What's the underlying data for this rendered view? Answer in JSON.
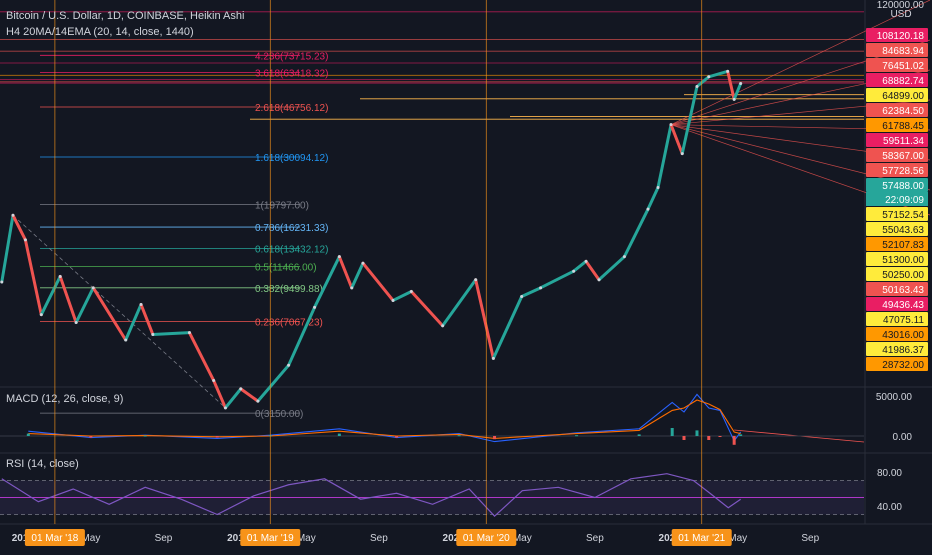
{
  "header": {
    "title": "Bitcoin / U.S. Dollar, 1D, COINBASE, Heikin Ashi",
    "indicator": "H4 20MA/14EMA (20, 14, close, 1440)"
  },
  "price_axis": {
    "top_label": "120000.00",
    "currency": "USD",
    "countdown": "22:09:09"
  },
  "colors": {
    "background": "#131722",
    "up": "#26a69a",
    "down": "#ef5350",
    "accent": "#f7931a",
    "fib": "#ef5350",
    "macd": "#2962ff",
    "signal": "#ff6d00",
    "rsi": "#7e57c2"
  },
  "chart_data": [
    {
      "type": "line",
      "name": "price",
      "scale": "log",
      "ylim": [
        4000,
        120000
      ],
      "x": [
        "2017-12-01",
        "2017-12-20",
        "2018-01-10",
        "2018-02-06",
        "2018-03-10",
        "2018-04-06",
        "2018-05-05",
        "2018-06-29",
        "2018-07-25",
        "2018-08-14",
        "2018-10-15",
        "2018-11-25",
        "2018-12-15",
        "2019-01-10",
        "2019-02-08",
        "2019-04-01",
        "2019-05-15",
        "2019-06-26",
        "2019-07-17",
        "2019-08-05",
        "2019-09-25",
        "2019-10-26",
        "2019-12-18",
        "2020-02-12",
        "2020-03-13",
        "2020-04-30",
        "2020-06-01",
        "2020-07-27",
        "2020-08-17",
        "2020-09-08",
        "2020-10-21",
        "2020-11-30",
        "2020-12-17",
        "2021-01-08",
        "2021-01-27",
        "2021-02-21",
        "2021-03-13",
        "2021-04-14",
        "2021-04-25",
        "2021-05-06"
      ],
      "values": [
        10000,
        18000,
        14500,
        7500,
        10500,
        7000,
        9500,
        6000,
        8200,
        6300,
        6400,
        4200,
        3300,
        3900,
        3500,
        4800,
        8000,
        12500,
        9500,
        11800,
        8500,
        9200,
        6800,
        10200,
        5100,
        8800,
        9500,
        11000,
        12000,
        10200,
        12500,
        19000,
        23000,
        40000,
        31000,
        56000,
        61000,
        64000,
        50000,
        57488
      ],
      "horizontal_levels": [
        108120.18,
        84683.94,
        76451.02,
        68882.74,
        64899.0,
        62384.5,
        61788.45,
        59511.34,
        58367.0,
        57728.56,
        57488.0,
        57152.54,
        55043.63,
        52107.83,
        51300.0,
        50250.0,
        50163.43,
        49436.43,
        47075.11,
        43016.0,
        41986.37,
        28732.0
      ],
      "fib_levels": [
        {
          "label": "4.236(73715.23)",
          "value": 73715.23
        },
        {
          "label": "3.618(63418.32)",
          "value": 63418.32
        },
        {
          "label": "2.618(46756.12)",
          "value": 46756.12
        },
        {
          "label": "1.618(30094.12)",
          "value": 30094.12
        },
        {
          "label": "1(19797.00)",
          "value": 19797.0
        },
        {
          "label": "0.786(16231.33)",
          "value": 16231.33
        },
        {
          "label": "0.618(13432.12)",
          "value": 13432.12
        },
        {
          "label": "0.5(11466.00)",
          "value": 11466.0
        },
        {
          "label": "0.382(9499.88)",
          "value": 9499.88
        },
        {
          "label": "0.236(7067.23)",
          "value": 7067.23
        },
        {
          "label": "0(3150.00)",
          "value": 3150.0
        }
      ],
      "x_ticks": [
        "201",
        "May",
        "Sep",
        "201",
        "May",
        "Sep",
        "202",
        "May",
        "Sep",
        "202",
        "May",
        "Sep"
      ],
      "date_markers": [
        "01 Mar '18",
        "01 Mar '19",
        "01 Mar '20",
        "01 Mar '21"
      ]
    },
    {
      "type": "line",
      "name": "MACD (12, 26, close, 9)",
      "ylim": [
        -2000,
        6000
      ],
      "y_ticks": [
        5000,
        0
      ],
      "y_tick_labels": [
        "5000.00",
        "0.00"
      ],
      "x": [
        "2018-01-15",
        "2018-05-01",
        "2018-08-01",
        "2018-12-01",
        "2019-03-01",
        "2019-06-26",
        "2019-10-01",
        "2020-01-15",
        "2020-03-15",
        "2020-08-01",
        "2020-11-15",
        "2021-01-10",
        "2021-01-30",
        "2021-02-21",
        "2021-03-13",
        "2021-04-01",
        "2021-04-25",
        "2021-05-06"
      ],
      "series": [
        {
          "values": [
            600,
            -200,
            100,
            -300,
            100,
            900,
            -200,
            300,
            -700,
            400,
            900,
            4200,
            3000,
            5200,
            3500,
            3200,
            -600,
            500
          ]
        },
        {
          "values": [
            300,
            0,
            50,
            -100,
            0,
            600,
            0,
            200,
            -300,
            300,
            700,
            3200,
            3500,
            4500,
            4000,
            3300,
            500,
            300
          ]
        }
      ]
    },
    {
      "type": "line",
      "name": "RSI (14, close)",
      "ylim": [
        20,
        100
      ],
      "y_ticks": [
        80,
        40
      ],
      "y_tick_labels": [
        "80.00",
        "40.00"
      ],
      "x": [
        "2017-12-01",
        "2018-02-01",
        "2018-04-01",
        "2018-06-01",
        "2018-08-01",
        "2018-10-01",
        "2018-12-01",
        "2019-02-01",
        "2019-04-01",
        "2019-06-01",
        "2019-08-01",
        "2019-10-01",
        "2019-12-01",
        "2020-02-01",
        "2020-03-15",
        "2020-05-01",
        "2020-07-01",
        "2020-09-01",
        "2020-11-01",
        "2021-01-01",
        "2021-02-15",
        "2021-03-15",
        "2021-04-15",
        "2021-05-06"
      ],
      "values": [
        72,
        45,
        60,
        42,
        62,
        48,
        30,
        52,
        65,
        72,
        48,
        55,
        42,
        60,
        28,
        58,
        62,
        50,
        72,
        78,
        70,
        55,
        38,
        48
      ]
    }
  ]
}
